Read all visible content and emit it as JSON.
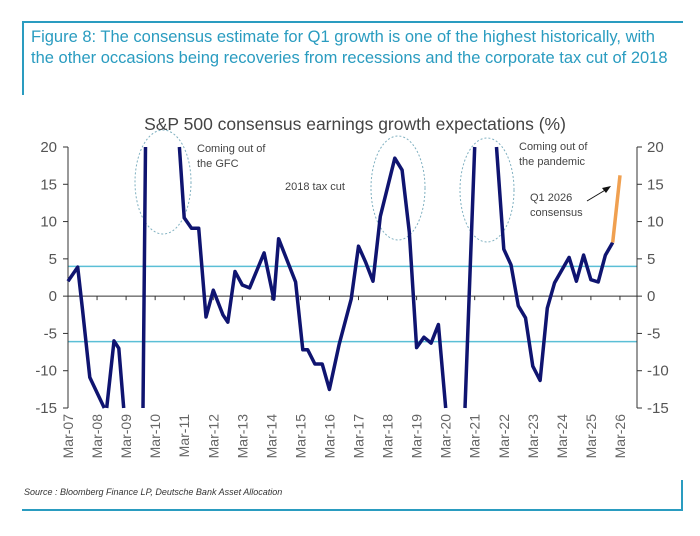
{
  "figure_title": "Figure 8: The consensus estimate for Q1 growth is one of the highest historically, with the other occasions being recoveries from recessions and the corporate tax cut of 2018",
  "source": "Source : Bloomberg Finance LP, Deutsche Bank Asset Allocation",
  "colors": {
    "frame": "#2a9cc0",
    "line": "#0f1470",
    "forecast": "#f0a050",
    "reference": "#5bbfd6",
    "ellipse": "#7fb0c0"
  },
  "chart_data": {
    "type": "line",
    "title": "S&P 500 consensus earnings growth expectations (%)",
    "xlabel": "",
    "ylabel": "",
    "ylim": [
      -15,
      20
    ],
    "yticks": [
      20,
      15,
      10,
      5,
      0,
      -5,
      -10,
      -15
    ],
    "xticks": [
      "Mar-07",
      "Mar-08",
      "Mar-09",
      "Mar-10",
      "Mar-11",
      "Mar-12",
      "Mar-13",
      "Mar-14",
      "Mar-15",
      "Mar-16",
      "Mar-17",
      "Mar-18",
      "Mar-19",
      "Mar-20",
      "Mar-21",
      "Mar-22",
      "Mar-23",
      "Mar-24",
      "Mar-25",
      "Mar-26"
    ],
    "grid": false,
    "dual_y_axis": true,
    "reference_lines": [
      4.0,
      -6.1
    ],
    "series": [
      {
        "role": "history",
        "points": [
          [
            "2007-03",
            2.0
          ],
          [
            "2007-07",
            3.9
          ],
          [
            "2007-09",
            -1.8
          ],
          [
            "2007-12",
            -10.9
          ],
          [
            "2008-06",
            -15
          ],
          [
            null,
            null
          ],
          [
            "2008-07",
            -15
          ],
          [
            "2008-10",
            -6.0
          ],
          [
            "2008-12",
            -7.0
          ],
          [
            "2009-02",
            -15
          ],
          [
            null,
            null
          ],
          [
            "2009-10",
            -15
          ],
          [
            "2009-11",
            20
          ],
          [
            null,
            null
          ],
          [
            "2011-01",
            20
          ],
          [
            "2011-03",
            10.5
          ],
          [
            "2011-06",
            9.1
          ],
          [
            "2011-09",
            9.1
          ],
          [
            "2011-12",
            -2.8
          ],
          [
            "2012-03",
            0.8
          ],
          [
            "2012-07",
            -2.5
          ],
          [
            "2012-09",
            -3.5
          ],
          [
            "2012-12",
            3.3
          ],
          [
            "2013-03",
            1.5
          ],
          [
            "2013-06",
            1.1
          ],
          [
            "2013-12",
            5.8
          ],
          [
            "2014-04",
            -0.4
          ],
          [
            "2014-06",
            7.7
          ],
          [
            "2015-01",
            1.9
          ],
          [
            "2015-04",
            -7.2
          ],
          [
            "2015-06",
            -7.2
          ],
          [
            "2015-09",
            -9.1
          ],
          [
            "2015-12",
            -9.1
          ],
          [
            "2016-03",
            -12.5
          ],
          [
            "2016-07",
            -6.5
          ],
          [
            "2016-12",
            -0.4
          ],
          [
            "2017-03",
            6.7
          ],
          [
            "2017-06",
            4.5
          ],
          [
            "2017-09",
            2.0
          ],
          [
            "2017-12",
            10.7
          ],
          [
            "2018-06",
            18.5
          ],
          [
            "2018-09",
            16.9
          ],
          [
            "2018-12",
            8.6
          ],
          [
            "2019-03",
            -6.9
          ],
          [
            "2019-06",
            -5.5
          ],
          [
            "2019-09",
            -6.3
          ],
          [
            "2019-12",
            -3.8
          ],
          [
            "2020-03",
            -15
          ],
          [
            null,
            null
          ],
          [
            "2020-11",
            -15
          ],
          [
            "2021-03",
            20
          ],
          [
            null,
            null
          ],
          [
            "2021-12",
            20
          ],
          [
            "2022-03",
            6.3
          ],
          [
            "2022-06",
            4.2
          ],
          [
            "2022-09",
            -1.3
          ],
          [
            "2022-12",
            -2.9
          ],
          [
            "2023-03",
            -9.4
          ],
          [
            "2023-06",
            -11.3
          ],
          [
            "2023-09",
            -1.6
          ],
          [
            "2023-12",
            1.8
          ],
          [
            "2024-06",
            5.2
          ],
          [
            "2024-09",
            2.0
          ],
          [
            "2024-12",
            5.5
          ],
          [
            "2025-03",
            2.2
          ],
          [
            "2025-06",
            1.9
          ],
          [
            "2025-09",
            5.5
          ],
          [
            "2025-12",
            7.2
          ]
        ]
      },
      {
        "role": "consensus",
        "points": [
          [
            "2025-12",
            7.2
          ],
          [
            "2026-03",
            16.2
          ]
        ]
      }
    ],
    "annotations": {
      "gfc": [
        "Coming out of",
        "the GFC"
      ],
      "tax_cut": "2018 tax cut",
      "pandemic": [
        "Coming out of",
        "the pandemic"
      ],
      "q1_2026": [
        "Q1 2026",
        "consensus"
      ]
    }
  }
}
